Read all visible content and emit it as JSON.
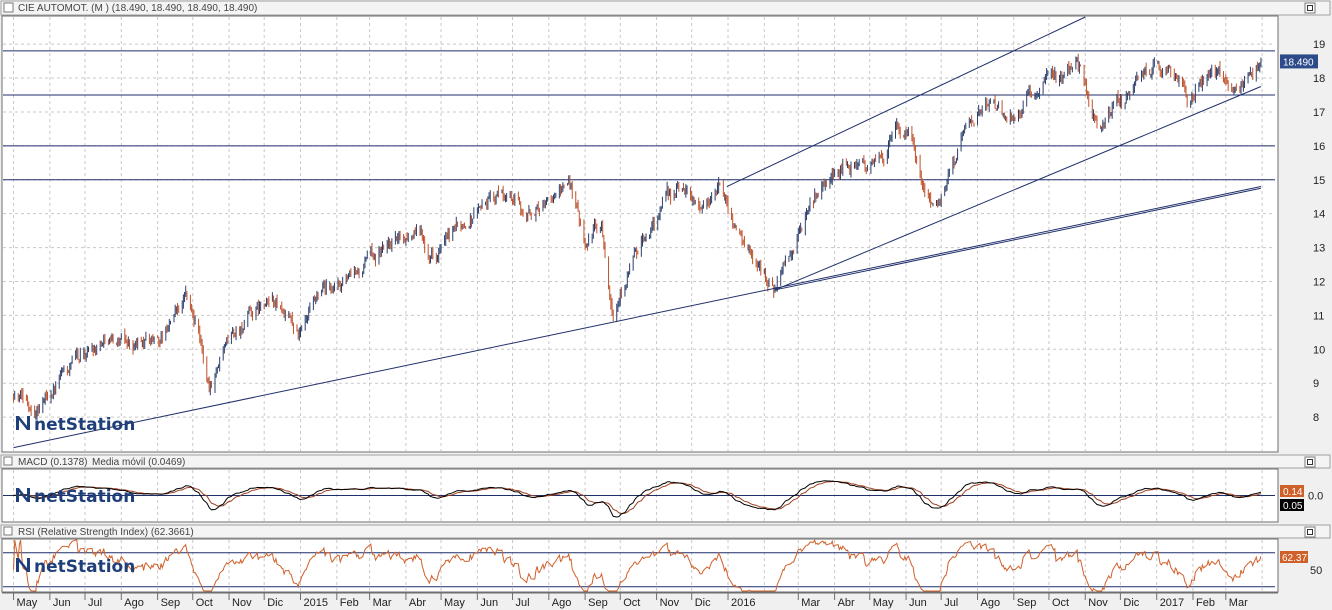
{
  "brand": "netStation",
  "colors": {
    "background": "#ffffff",
    "grid": "#c8c8c8",
    "candle_up": "#2b3f6b",
    "candle_down": "#c0502a",
    "price_line": "#1f2f6a",
    "macd_line": "#000000",
    "signal_line": "#a04020",
    "rsi_line": "#d0602a",
    "price_tag": "#2d4a8a",
    "macd_tag": "#d0602a",
    "signal_tag": "#000000"
  },
  "chart_data": [
    {
      "type": "candlestick",
      "title": "CIE AUTOMOT. (M ) (18.490, 18.490, 18.490, 18.490)",
      "last_value_label": "18.490",
      "y_ticks": [
        8,
        9,
        10,
        11,
        12,
        13,
        14,
        15,
        16,
        17,
        18,
        19
      ],
      "ylim": [
        7,
        19.8
      ],
      "grid": true,
      "horizontal_levels": [
        18.8,
        17.5,
        16.0,
        15.0
      ],
      "trendlines": [
        {
          "from": {
            "date": "2014-05-01",
            "value": 7.1
          },
          "to": {
            "date": "2017-03-31",
            "value": 14.8
          }
        },
        {
          "from": {
            "date": "2015-12-31",
            "value": 14.8
          },
          "to": {
            "date": "2016-11-01",
            "value": 19.8
          }
        },
        {
          "from": {
            "date": "2016-02-10",
            "value": 11.75
          },
          "to": {
            "date": "2017-03-31",
            "value": 17.75
          }
        },
        {
          "from": {
            "date": "2016-02-10",
            "value": 11.75
          },
          "to": {
            "date": "2017-03-31",
            "value": 14.75
          }
        }
      ],
      "approx_close_path": [
        {
          "date": "2014-05-01",
          "value": 8.7
        },
        {
          "date": "2014-05-20",
          "value": 8.3
        },
        {
          "date": "2014-06-15",
          "value": 9.3
        },
        {
          "date": "2014-07-01",
          "value": 9.9
        },
        {
          "date": "2014-07-20",
          "value": 10.4
        },
        {
          "date": "2014-08-15",
          "value": 10.1
        },
        {
          "date": "2014-09-05",
          "value": 10.4
        },
        {
          "date": "2014-09-25",
          "value": 11.7
        },
        {
          "date": "2014-10-05",
          "value": 10.5
        },
        {
          "date": "2014-10-15",
          "value": 9.0
        },
        {
          "date": "2014-11-01",
          "value": 10.2
        },
        {
          "date": "2014-11-20",
          "value": 11.0
        },
        {
          "date": "2014-12-10",
          "value": 11.4
        },
        {
          "date": "2015-01-01",
          "value": 10.4
        },
        {
          "date": "2015-01-20",
          "value": 11.6
        },
        {
          "date": "2015-02-15",
          "value": 12.0
        },
        {
          "date": "2015-03-05",
          "value": 12.8
        },
        {
          "date": "2015-03-20",
          "value": 13.2
        },
        {
          "date": "2015-04-10",
          "value": 13.5
        },
        {
          "date": "2015-04-25",
          "value": 12.8
        },
        {
          "date": "2015-05-15",
          "value": 13.5
        },
        {
          "date": "2015-06-05",
          "value": 14.3
        },
        {
          "date": "2015-06-25",
          "value": 14.6
        },
        {
          "date": "2015-07-15",
          "value": 14.0
        },
        {
          "date": "2015-08-05",
          "value": 14.5
        },
        {
          "date": "2015-08-20",
          "value": 14.9
        },
        {
          "date": "2015-09-01",
          "value": 13.3
        },
        {
          "date": "2015-09-15",
          "value": 13.8
        },
        {
          "date": "2015-09-25",
          "value": 11.2
        },
        {
          "date": "2015-10-10",
          "value": 12.5
        },
        {
          "date": "2015-10-25",
          "value": 13.4
        },
        {
          "date": "2015-11-10",
          "value": 14.4
        },
        {
          "date": "2015-11-25",
          "value": 14.8
        },
        {
          "date": "2015-12-10",
          "value": 14.2
        },
        {
          "date": "2015-12-25",
          "value": 14.8
        },
        {
          "date": "2016-01-10",
          "value": 13.5
        },
        {
          "date": "2016-01-25",
          "value": 12.6
        },
        {
          "date": "2016-02-10",
          "value": 11.8
        },
        {
          "date": "2016-02-25",
          "value": 12.8
        },
        {
          "date": "2016-03-10",
          "value": 14.2
        },
        {
          "date": "2016-03-25",
          "value": 15.0
        },
        {
          "date": "2016-04-10",
          "value": 15.5
        },
        {
          "date": "2016-04-25",
          "value": 15.3
        },
        {
          "date": "2016-05-10",
          "value": 15.6
        },
        {
          "date": "2016-05-25",
          "value": 16.4
        },
        {
          "date": "2016-06-05",
          "value": 16.2
        },
        {
          "date": "2016-06-15",
          "value": 15.0
        },
        {
          "date": "2016-06-28",
          "value": 14.2
        },
        {
          "date": "2016-07-10",
          "value": 15.6
        },
        {
          "date": "2016-07-25",
          "value": 16.8
        },
        {
          "date": "2016-08-10",
          "value": 17.2
        },
        {
          "date": "2016-08-25",
          "value": 16.8
        },
        {
          "date": "2016-09-10",
          "value": 17.3
        },
        {
          "date": "2016-09-25",
          "value": 17.8
        },
        {
          "date": "2016-10-10",
          "value": 17.9
        },
        {
          "date": "2016-10-25",
          "value": 18.7
        },
        {
          "date": "2016-11-05",
          "value": 17.0
        },
        {
          "date": "2016-11-15",
          "value": 16.5
        },
        {
          "date": "2016-11-30",
          "value": 17.3
        },
        {
          "date": "2016-12-15",
          "value": 17.9
        },
        {
          "date": "2017-01-01",
          "value": 18.4
        },
        {
          "date": "2017-01-15",
          "value": 18.3
        },
        {
          "date": "2017-01-28",
          "value": 17.3
        },
        {
          "date": "2017-02-10",
          "value": 18.0
        },
        {
          "date": "2017-02-25",
          "value": 18.3
        },
        {
          "date": "2017-03-10",
          "value": 17.7
        },
        {
          "date": "2017-03-20",
          "value": 17.8
        },
        {
          "date": "2017-03-31",
          "value": 18.49
        }
      ]
    },
    {
      "type": "line",
      "title_parts": [
        "MACD (0.1378)",
        "Media móvil (0.0469)"
      ],
      "y_ticks": [
        0.0
      ],
      "ylim": [
        -0.9,
        0.9
      ],
      "tags": [
        "0.14",
        "0.05"
      ]
    },
    {
      "type": "line",
      "title": "RSI (Relative Strength Index) (62.3661)",
      "y_ticks": [
        50
      ],
      "ylim": [
        25,
        85
      ],
      "reference_levels": [
        70,
        30
      ],
      "tags": [
        "62.37"
      ]
    }
  ],
  "x_axis": {
    "labels": [
      {
        "text": "May",
        "date": "2014-05-01"
      },
      {
        "text": "Jun",
        "date": "2014-06-01"
      },
      {
        "text": "Jul",
        "date": "2014-07-01"
      },
      {
        "text": "Ago",
        "date": "2014-08-01"
      },
      {
        "text": "Sep",
        "date": "2014-09-01"
      },
      {
        "text": "Oct",
        "date": "2014-10-01"
      },
      {
        "text": "Nov",
        "date": "2014-11-01"
      },
      {
        "text": "Dic",
        "date": "2014-12-01"
      },
      {
        "text": "2015",
        "date": "2015-01-01"
      },
      {
        "text": "Feb",
        "date": "2015-02-01"
      },
      {
        "text": "Mar",
        "date": "2015-03-01"
      },
      {
        "text": "Abr",
        "date": "2015-04-01"
      },
      {
        "text": "May",
        "date": "2015-05-01"
      },
      {
        "text": "Jun",
        "date": "2015-06-01"
      },
      {
        "text": "Jul",
        "date": "2015-07-01"
      },
      {
        "text": "Ago",
        "date": "2015-08-01"
      },
      {
        "text": "Sep",
        "date": "2015-09-01"
      },
      {
        "text": "Oct",
        "date": "2015-10-01"
      },
      {
        "text": "Nov",
        "date": "2015-11-01"
      },
      {
        "text": "Dic",
        "date": "2015-12-01"
      },
      {
        "text": "2016",
        "date": "2016-01-01"
      },
      {
        "text": "Mar",
        "date": "2016-03-01"
      },
      {
        "text": "Abr",
        "date": "2016-04-01"
      },
      {
        "text": "May",
        "date": "2016-05-01"
      },
      {
        "text": "Jun",
        "date": "2016-06-01"
      },
      {
        "text": "Jul",
        "date": "2016-07-01"
      },
      {
        "text": "Ago",
        "date": "2016-08-01"
      },
      {
        "text": "Sep",
        "date": "2016-09-01"
      },
      {
        "text": "Oct",
        "date": "2016-10-01"
      },
      {
        "text": "Nov",
        "date": "2016-11-01"
      },
      {
        "text": "Dic",
        "date": "2016-12-01"
      },
      {
        "text": "2017",
        "date": "2017-01-01"
      },
      {
        "text": "Feb",
        "date": "2017-02-01"
      },
      {
        "text": "Mar",
        "date": "2017-03-01"
      }
    ]
  }
}
